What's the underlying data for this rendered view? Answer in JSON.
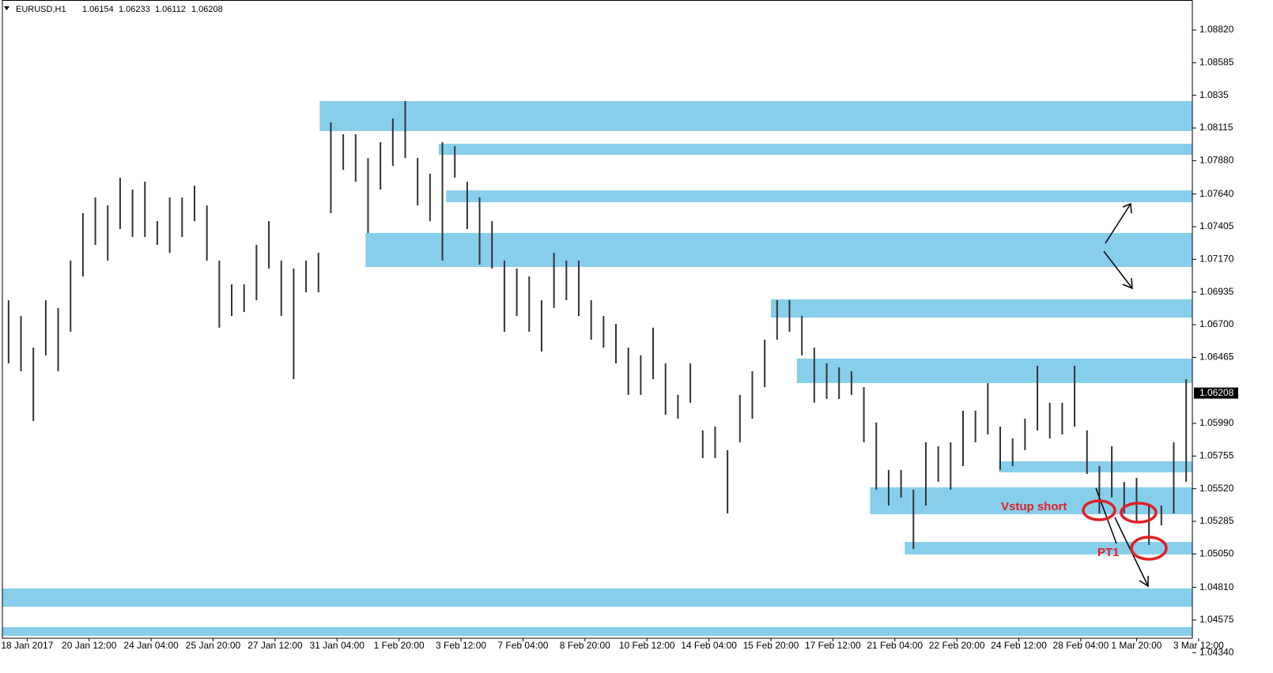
{
  "header": {
    "symbol": "EURUSD,H1",
    "ohlc": [
      1.06154,
      1.06233,
      1.06112,
      1.06208
    ]
  },
  "chart_data": {
    "type": "hilo",
    "color": "#333333",
    "high": [
      1.06876,
      1.06763,
      1.06535,
      1.06876,
      1.0682,
      1.07161,
      1.07502,
      1.07615,
      1.07558,
      1.07757,
      1.07672,
      1.07729,
      1.07445,
      1.07615,
      1.07615,
      1.077,
      1.07558,
      1.07161,
      1.0699,
      1.0699,
      1.07274,
      1.07445,
      1.07161,
      1.07104,
      1.07161,
      1.07217,
      1.08155,
      1.0807,
      1.0807,
      1.07899,
      1.08013,
      1.08184,
      1.08309,
      1.07899,
      1.07786,
      1.08013,
      1.07985,
      1.07729,
      1.07615,
      1.07445,
      1.07161,
      1.07104,
      1.07047,
      1.06876,
      1.07217,
      1.07161,
      1.07161,
      1.06876,
      1.06763,
      1.06706,
      1.06535,
      1.06479,
      1.06678,
      1.06422,
      1.06195,
      1.06422,
      1.05939,
      1.05967,
      1.05797,
      1.06195,
      1.06365,
      1.06592,
      1.06876,
      1.06876,
      1.06763,
      1.06535,
      1.06422,
      1.06393,
      1.06365,
      1.06251,
      1.05996,
      1.05655,
      1.05655,
      1.05513,
      1.05854,
      1.05825,
      1.05854,
      1.06081,
      1.06081,
      1.0628,
      1.05967,
      1.05882,
      1.06024,
      1.06405,
      1.06138,
      1.06138,
      1.06405,
      1.05939,
      1.05683,
      1.05825,
      1.05569,
      1.05598,
      1.05399,
      1.05399,
      1.05854,
      1.06308
    ],
    "low": [
      1.06422,
      1.06365,
      1.06007,
      1.06479,
      1.06365,
      1.06649,
      1.07047,
      1.07274,
      1.07161,
      1.07388,
      1.07331,
      1.07331,
      1.07274,
      1.07217,
      1.07331,
      1.07445,
      1.07161,
      1.06678,
      1.06763,
      1.06791,
      1.06876,
      1.07104,
      1.06763,
      1.06308,
      1.06933,
      1.06933,
      1.07502,
      1.07814,
      1.07729,
      1.0736,
      1.07672,
      1.07843,
      1.07899,
      1.07558,
      1.07445,
      1.07161,
      1.07757,
      1.07388,
      1.07132,
      1.07104,
      1.06649,
      1.06763,
      1.06649,
      1.06507,
      1.0682,
      1.06876,
      1.06763,
      1.06592,
      1.06535,
      1.06422,
      1.06195,
      1.06195,
      1.06308,
      1.06052,
      1.06024,
      1.06138,
      1.0574,
      1.0574,
      1.05342,
      1.05854,
      1.06024,
      1.06251,
      1.06592,
      1.06649,
      1.06479,
      1.06138,
      1.06166,
      1.06166,
      1.06195,
      1.05854,
      1.05513,
      1.05399,
      1.05456,
      1.05086,
      1.05399,
      1.05569,
      1.05513,
      1.05683,
      1.05854,
      1.0591,
      1.05655,
      1.05683,
      1.05797,
      1.05939,
      1.05882,
      1.0591,
      1.05967,
      1.05626,
      1.05342,
      1.05456,
      1.05342,
      1.05285,
      1.05115,
      1.05257,
      1.05342,
      1.05569
    ],
    "xlim": [
      -0.5,
      95.5
    ],
    "xticks": [
      {
        "value": 1.5,
        "label": "18 Jan 2017"
      },
      {
        "value": 6.5,
        "label": "20 Jan 12:00"
      },
      {
        "value": 11.5,
        "label": "24 Jan 04:00"
      },
      {
        "value": 16.5,
        "label": "25 Jan 20:00"
      },
      {
        "value": 21.5,
        "label": "27 Jan 12:00"
      },
      {
        "value": 26.5,
        "label": "31 Jan 04:00"
      },
      {
        "value": 31.5,
        "label": "1 Feb 20:00"
      },
      {
        "value": 36.5,
        "label": "3 Feb 12:00"
      },
      {
        "value": 41.5,
        "label": "7 Feb 04:00"
      },
      {
        "value": 46.5,
        "label": "8 Feb 20:00"
      },
      {
        "value": 51.5,
        "label": "10 Feb 12:00"
      },
      {
        "value": 56.5,
        "label": "14 Feb 04:00"
      },
      {
        "value": 61.5,
        "label": "15 Feb 20:00"
      },
      {
        "value": 66.5,
        "label": "17 Feb 12:00"
      },
      {
        "value": 71.5,
        "label": "21 Feb 04:00"
      },
      {
        "value": 76.5,
        "label": "22 Feb 20:00"
      },
      {
        "value": 81.5,
        "label": "24 Feb 12:00"
      },
      {
        "value": 86.5,
        "label": "28 Feb 04:00"
      },
      {
        "value": 91.0,
        "label": "1 Mar 20:00"
      },
      {
        "value": 96.0,
        "label": "3 Mar 12:00"
      }
    ],
    "ylim": [
      1.04444,
      1.09036
    ],
    "yticks": [
      {
        "value": 1.0882,
        "label": "1.08820"
      },
      1.08585,
      1.0835,
      1.08115,
      {
        "value": 1.0788,
        "label": "1.07880"
      },
      {
        "value": 1.0764,
        "label": "1.07640"
      },
      1.07405,
      {
        "value": 1.0717,
        "label": "1.07170"
      },
      1.06935,
      {
        "value": 1.067,
        "label": "1.06700"
      },
      1.06465,
      {
        "value": 1.0599,
        "label": "1.05990"
      },
      1.05755,
      {
        "value": 1.0552,
        "label": "1.05520"
      },
      1.05285,
      {
        "value": 1.0505,
        "label": "1.05050"
      },
      {
        "value": 1.0481,
        "label": "1.04810"
      },
      1.04575,
      {
        "value": 1.0434,
        "label": "1.04340"
      }
    ],
    "current_price": 1.06208,
    "zone_color": "#87ceeb",
    "zones": [
      {
        "start": 25.1,
        "top": 1.08309,
        "bottom": 1.08093
      },
      {
        "start": 34.7,
        "top": 1.08002,
        "bottom": 1.07922
      },
      {
        "start": 35.3,
        "top": 1.07666,
        "bottom": 1.07581
      },
      {
        "start": 28.8,
        "top": 1.0736,
        "bottom": 1.07115
      },
      {
        "start": 61.5,
        "top": 1.06882,
        "bottom": 1.06751
      },
      {
        "start": 63.6,
        "top": 1.06456,
        "bottom": 1.0628
      },
      {
        "start": 79.9,
        "top": 1.05717,
        "bottom": 1.05638
      },
      {
        "start": 69.5,
        "top": 1.0553,
        "bottom": 1.05336
      },
      {
        "start": 72.3,
        "top": 1.05137,
        "bottom": 1.05047
      },
      {
        "start": -0.5,
        "top": 1.04802,
        "bottom": 1.04671
      },
      {
        "start": -0.5,
        "top": 1.04524,
        "bottom": 1.04461
      }
    ],
    "annotations": [
      "Vstup short",
      "PT1"
    ]
  }
}
